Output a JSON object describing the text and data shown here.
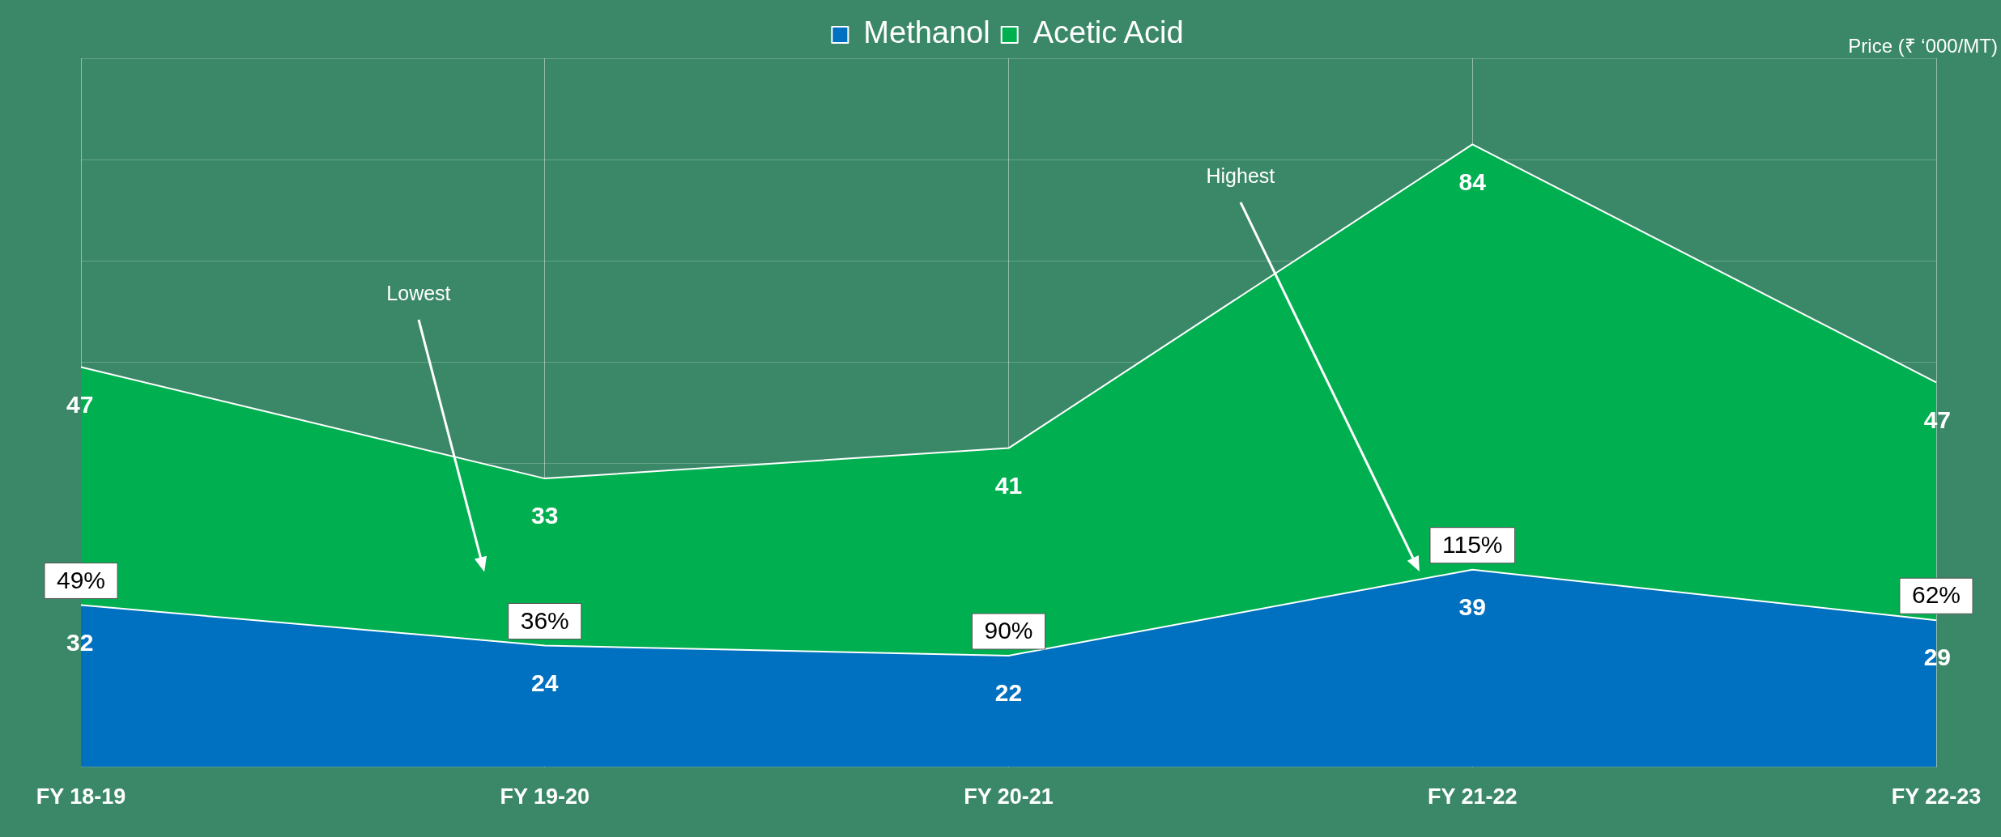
{
  "chart_data": {
    "type": "area",
    "stacked": true,
    "ylabel": "Price (₹ ‘000/MT)",
    "categories": [
      "FY 18-19",
      "FY 19-20",
      "FY 20-21",
      "FY 21-22",
      "FY 22-23"
    ],
    "series": [
      {
        "name": "Methanol",
        "color": "#0070c0",
        "values": [
          32,
          24,
          22,
          39,
          29
        ]
      },
      {
        "name": "Acetic Acid",
        "color": "#00b050",
        "values": [
          47,
          33,
          41,
          84,
          47
        ]
      }
    ],
    "grid": true,
    "legend": "top",
    "data_labels": true,
    "tick_labels": "x",
    "annotations": [
      {
        "text": "49%",
        "x": "FY 18-19",
        "y": 32
      },
      {
        "text": "36%",
        "x": "FY 19-20",
        "y": 24
      },
      {
        "text": "90%",
        "x": "FY 20-21",
        "y": 22
      },
      {
        "text": "115%",
        "x": "FY 21-22",
        "y": 39
      },
      {
        "text": "62%",
        "x": "FY 22-23",
        "y": 29
      },
      "Lowest",
      "Highest"
    ]
  }
}
